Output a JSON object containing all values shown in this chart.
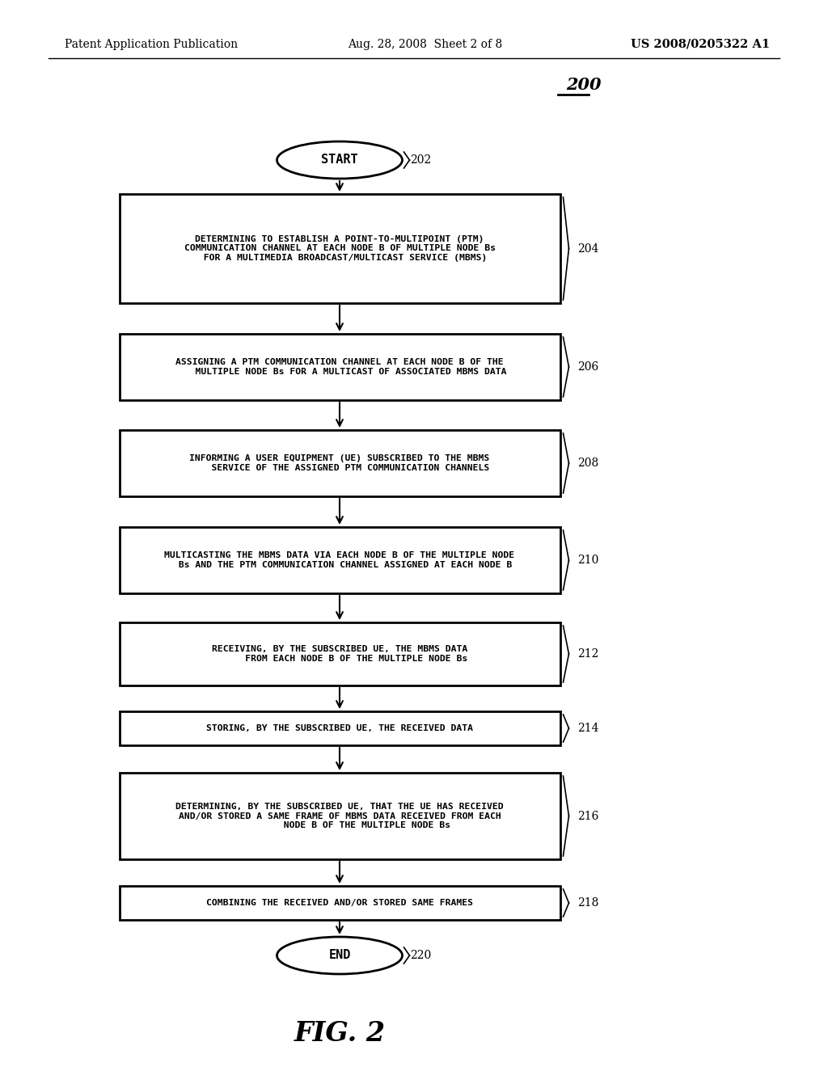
{
  "header_left": "Patent Application Publication",
  "header_center": "Aug. 28, 2008  Sheet 2 of 8",
  "header_right": "US 2008/0205322 A1",
  "diagram_number": "200",
  "figure_label": "FIG. 2",
  "nodes": [
    {
      "id": "start",
      "type": "oval",
      "label": "START",
      "number": "202"
    },
    {
      "id": "204",
      "type": "rect",
      "label": "DETERMINING TO ESTABLISH A POINT-TO-MULTIPOINT (PTM)\nCOMMUNICATION CHANNEL AT EACH NODE B OF MULTIPLE NODE Bs\nFOR A MULTIMEDIA BROADCAST/MULTICAST SERVICE (MBMS)",
      "number": "204"
    },
    {
      "id": "206",
      "type": "rect",
      "label": "ASSIGNING A PTM COMMUNICATION CHANNEL AT EACH NODE B OF THE\nMULTIPLE NODE Bs FOR A MULTICAST OF ASSOCIATED MBMS DATA",
      "number": "206"
    },
    {
      "id": "208",
      "type": "rect",
      "label": "INFORMING A USER EQUIPMENT (UE) SUBSCRIBED TO THE MBMS\nSERVICE OF THE ASSIGNED PTM COMMUNICATION CHANNELS",
      "number": "208"
    },
    {
      "id": "210",
      "type": "rect",
      "label": "MULTICASTING THE MBMS DATA VIA EACH NODE B OF THE MULTIPLE NODE\nBs AND THE PTM COMMUNICATION CHANNEL ASSIGNED AT EACH NODE B",
      "number": "210"
    },
    {
      "id": "212",
      "type": "rect",
      "label": "RECEIVING, BY THE SUBSCRIBED UE, THE MBMS DATA\nFROM EACH NODE B OF THE MULTIPLE NODE Bs",
      "number": "212"
    },
    {
      "id": "214",
      "type": "rect",
      "label": "STORING, BY THE SUBSCRIBED UE, THE RECEIVED DATA",
      "number": "214"
    },
    {
      "id": "216",
      "type": "rect",
      "label": "DETERMINING, BY THE SUBSCRIBED UE, THAT THE UE HAS RECEIVED\nAND/OR STORED A SAME FRAME OF MBMS DATA RECEIVED FROM EACH\nNODE B OF THE MULTIPLE NODE Bs",
      "number": "216"
    },
    {
      "id": "218",
      "type": "rect",
      "label": "COMBINING THE RECEIVED AND/OR STORED SAME FRAMES",
      "number": "218"
    },
    {
      "id": "end",
      "type": "oval",
      "label": "END",
      "number": "220"
    }
  ],
  "bg_color": "#ffffff",
  "box_edge_color": "#000000",
  "text_color": "#000000",
  "arrow_color": "#000000"
}
